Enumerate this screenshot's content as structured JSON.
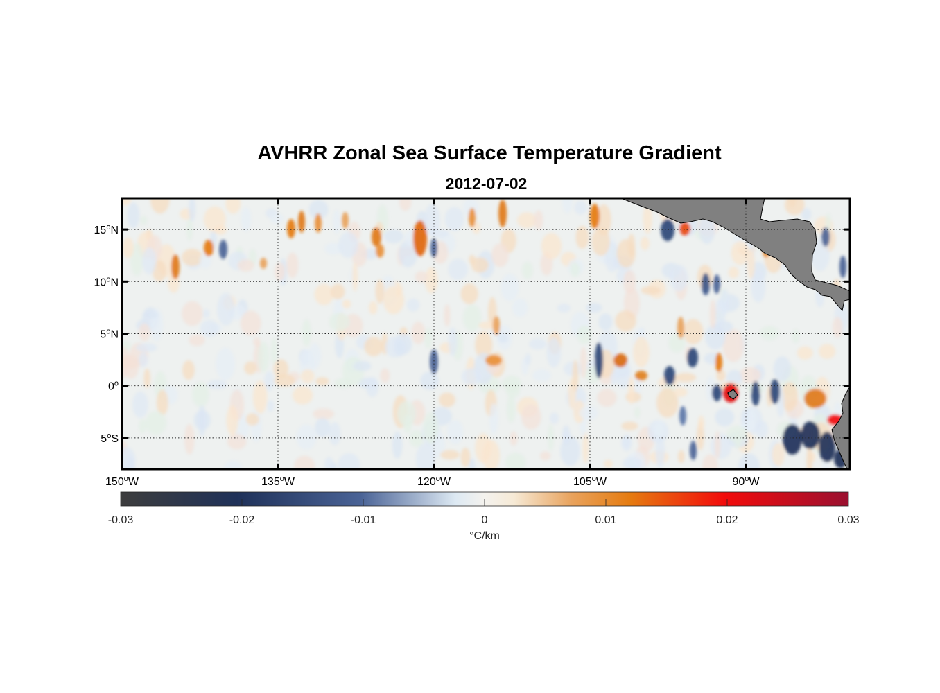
{
  "title": "AVHRR Zonal Sea Surface Temperature Gradient",
  "subtitle": "2012-07-02",
  "map": {
    "lon_range": [
      -150,
      -80
    ],
    "lat_range": [
      -8,
      18
    ],
    "lat_ticks": [
      {
        "value": 15,
        "num": "15",
        "hemi": "N"
      },
      {
        "value": 10,
        "num": "10",
        "hemi": "N"
      },
      {
        "value": 5,
        "num": "5",
        "hemi": "N"
      },
      {
        "value": 0,
        "num": "0",
        "hemi": ""
      },
      {
        "value": -5,
        "num": "5",
        "hemi": "S"
      }
    ],
    "lon_ticks": [
      {
        "value": -150,
        "num": "150",
        "hemi": "W"
      },
      {
        "value": -135,
        "num": "135",
        "hemi": "W"
      },
      {
        "value": -120,
        "num": "120",
        "hemi": "W"
      },
      {
        "value": -105,
        "num": "105",
        "hemi": "W"
      },
      {
        "value": -90,
        "num": "90",
        "hemi": "W"
      }
    ],
    "land_color": "#808080",
    "grid_style": "dotted"
  },
  "colorbar": {
    "range": [
      -0.03,
      0.03
    ],
    "ticks": [
      "-0.03",
      "-0.02",
      "-0.01",
      "0",
      "0.01",
      "0.02",
      "0.03"
    ],
    "unit": "°C/km",
    "colors": [
      "#3d3d3d",
      "#1f3159",
      "#4a6396",
      "#dde9f3",
      "#f6efe0",
      "#e57b10",
      "#f20b0b",
      "#9a1030"
    ]
  }
}
